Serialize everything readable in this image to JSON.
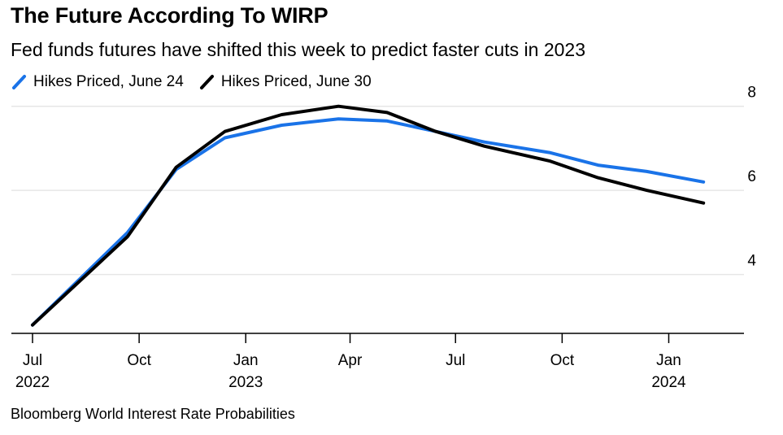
{
  "header": {
    "title": "The Future According To WIRP",
    "subtitle": "Fed funds futures have shifted this week to predict faster cuts in 2023"
  },
  "footer": {
    "source": "Bloomberg World Interest Rate Probabilities"
  },
  "colors": {
    "series_blue": "#1a73e8",
    "series_black": "#000000",
    "grid": "#e6e6e6",
    "axis": "#000000"
  },
  "chart_data": {
    "type": "line",
    "title": "The Future According To WIRP",
    "subtitle": "Fed funds futures have shifted this week to predict faster cuts in 2023",
    "xlabel": "",
    "ylabel": "",
    "ylim": [
      2.6,
      8.4
    ],
    "yticks": [
      4,
      6,
      8
    ],
    "y_axis_side": "right",
    "grid": true,
    "legend_position": "top-left",
    "x_ticks": [
      {
        "date": "2022-07-01",
        "label": "Jul",
        "year": "2022"
      },
      {
        "date": "2022-10-01",
        "label": "Oct",
        "year": ""
      },
      {
        "date": "2023-01-01",
        "label": "Jan",
        "year": "2023"
      },
      {
        "date": "2023-04-01",
        "label": "Apr",
        "year": ""
      },
      {
        "date": "2023-07-01",
        "label": "Jul",
        "year": ""
      },
      {
        "date": "2023-10-01",
        "label": "Oct",
        "year": ""
      },
      {
        "date": "2024-01-01",
        "label": "Jan",
        "year": "2024"
      }
    ],
    "x_range": [
      "2022-07-01",
      "2024-03-01"
    ],
    "series": [
      {
        "name": "Hikes Priced, June 24",
        "color": "#1a73e8",
        "points": [
          {
            "x": "2022-07-01",
            "y": 2.8
          },
          {
            "x": "2022-09-21",
            "y": 5.0
          },
          {
            "x": "2022-11-02",
            "y": 6.5
          },
          {
            "x": "2022-12-14",
            "y": 7.25
          },
          {
            "x": "2023-02-01",
            "y": 7.55
          },
          {
            "x": "2023-03-22",
            "y": 7.7
          },
          {
            "x": "2023-05-03",
            "y": 7.65
          },
          {
            "x": "2023-06-14",
            "y": 7.4
          },
          {
            "x": "2023-07-26",
            "y": 7.15
          },
          {
            "x": "2023-09-20",
            "y": 6.9
          },
          {
            "x": "2023-11-01",
            "y": 6.6
          },
          {
            "x": "2023-12-13",
            "y": 6.45
          },
          {
            "x": "2024-01-31",
            "y": 6.2
          }
        ]
      },
      {
        "name": "Hikes Priced, June 30",
        "color": "#000000",
        "points": [
          {
            "x": "2022-07-01",
            "y": 2.8
          },
          {
            "x": "2022-09-21",
            "y": 4.9
          },
          {
            "x": "2022-11-02",
            "y": 6.55
          },
          {
            "x": "2022-12-14",
            "y": 7.4
          },
          {
            "x": "2023-02-01",
            "y": 7.8
          },
          {
            "x": "2023-03-22",
            "y": 8.0
          },
          {
            "x": "2023-05-03",
            "y": 7.85
          },
          {
            "x": "2023-06-14",
            "y": 7.4
          },
          {
            "x": "2023-07-26",
            "y": 7.05
          },
          {
            "x": "2023-09-20",
            "y": 6.7
          },
          {
            "x": "2023-11-01",
            "y": 6.3
          },
          {
            "x": "2023-12-13",
            "y": 6.0
          },
          {
            "x": "2024-01-31",
            "y": 5.7
          }
        ]
      }
    ]
  }
}
